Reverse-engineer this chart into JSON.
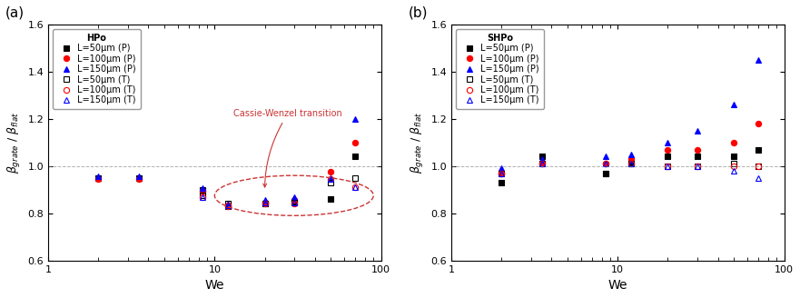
{
  "panel_a": {
    "title": "HPo",
    "xlabel": "We",
    "xlim": [
      1,
      100
    ],
    "ylim": [
      0.6,
      1.6
    ],
    "yticks": [
      0.6,
      0.8,
      1.0,
      1.2,
      1.4,
      1.6
    ],
    "annotation_text": "Cassie-Wenzel transition",
    "series": {
      "L50P": {
        "label": "L=50μm (P)",
        "color": "black",
        "marker": "s",
        "filled": true,
        "x": [
          2.0,
          3.5,
          8.5,
          12,
          20,
          30,
          50,
          70
        ],
        "y": [
          0.95,
          0.95,
          0.9,
          0.83,
          0.84,
          0.845,
          0.86,
          1.04
        ]
      },
      "L100P": {
        "label": "L=100μm (P)",
        "color": "red",
        "marker": "o",
        "filled": true,
        "x": [
          2.0,
          3.5,
          8.5,
          12,
          20,
          30,
          50,
          70
        ],
        "y": [
          0.945,
          0.945,
          0.895,
          0.83,
          0.845,
          0.855,
          0.975,
          1.1
        ]
      },
      "L150P": {
        "label": "L=150μm (P)",
        "color": "blue",
        "marker": "^",
        "filled": true,
        "x": [
          2.0,
          3.5,
          8.5,
          12,
          20,
          30,
          50,
          70
        ],
        "y": [
          0.955,
          0.955,
          0.905,
          0.84,
          0.855,
          0.87,
          0.95,
          1.2
        ]
      },
      "L50T": {
        "label": "L=50μm (T)",
        "color": "black",
        "marker": "s",
        "filled": false,
        "x": [
          8.5,
          12,
          20,
          30,
          50,
          70
        ],
        "y": [
          0.875,
          0.84,
          0.84,
          0.845,
          0.93,
          0.95
        ]
      },
      "L100T": {
        "label": "L=100μm (T)",
        "color": "red",
        "marker": "o",
        "filled": false,
        "x": [
          8.5,
          12,
          20,
          30,
          50,
          70
        ],
        "y": [
          0.87,
          0.835,
          0.84,
          0.84,
          0.945,
          0.91
        ]
      },
      "L150T": {
        "label": "L=150μm (T)",
        "color": "blue",
        "marker": "^",
        "filled": false,
        "x": [
          8.5,
          12,
          20,
          30,
          50,
          70
        ],
        "y": [
          0.87,
          0.835,
          0.845,
          0.845,
          0.945,
          0.91
        ]
      }
    }
  },
  "panel_b": {
    "title": "SHPo",
    "xlabel": "We",
    "xlim": [
      1,
      100
    ],
    "ylim": [
      0.6,
      1.6
    ],
    "yticks": [
      0.6,
      0.8,
      1.0,
      1.2,
      1.4,
      1.6
    ],
    "series": {
      "L50P": {
        "label": "L=50μm (P)",
        "color": "black",
        "marker": "s",
        "filled": true,
        "x": [
          2.0,
          3.5,
          8.5,
          12,
          20,
          30,
          50,
          70
        ],
        "y": [
          0.93,
          1.04,
          0.97,
          1.01,
          1.04,
          1.04,
          1.04,
          1.07
        ]
      },
      "L100P": {
        "label": "L=100μm (P)",
        "color": "red",
        "marker": "o",
        "filled": true,
        "x": [
          2.0,
          3.5,
          8.5,
          12,
          20,
          30,
          50,
          70
        ],
        "y": [
          0.97,
          1.01,
          1.01,
          1.03,
          1.07,
          1.07,
          1.1,
          1.18
        ]
      },
      "L150P": {
        "label": "L=150μm (P)",
        "color": "blue",
        "marker": "^",
        "filled": true,
        "x": [
          2.0,
          3.5,
          8.5,
          12,
          20,
          30,
          50,
          70
        ],
        "y": [
          0.99,
          1.03,
          1.04,
          1.05,
          1.1,
          1.15,
          1.26,
          1.45
        ]
      },
      "L50T": {
        "label": "L=50μm (T)",
        "color": "black",
        "marker": "s",
        "filled": false,
        "x": [
          2.0,
          3.5,
          8.5,
          12,
          20,
          30,
          50,
          70
        ],
        "y": [
          0.97,
          1.01,
          0.97,
          1.01,
          1.0,
          1.0,
          1.01,
          1.0
        ]
      },
      "L100T": {
        "label": "L=100μm (T)",
        "color": "red",
        "marker": "o",
        "filled": false,
        "x": [
          2.0,
          3.5,
          8.5,
          12,
          20,
          30,
          50,
          70
        ],
        "y": [
          0.97,
          1.01,
          1.01,
          1.01,
          1.0,
          1.0,
          1.0,
          1.0
        ]
      },
      "L150T": {
        "label": "L=150μm (T)",
        "color": "blue",
        "marker": "^",
        "filled": false,
        "x": [
          2.0,
          3.5,
          8.5,
          12,
          20,
          30,
          50,
          70
        ],
        "y": [
          0.97,
          1.01,
          1.01,
          1.01,
          1.0,
          1.0,
          0.98,
          0.95
        ]
      }
    }
  },
  "annotation_color": "#cc3333",
  "dpi": 100,
  "figsize": [
    8.81,
    3.28
  ]
}
